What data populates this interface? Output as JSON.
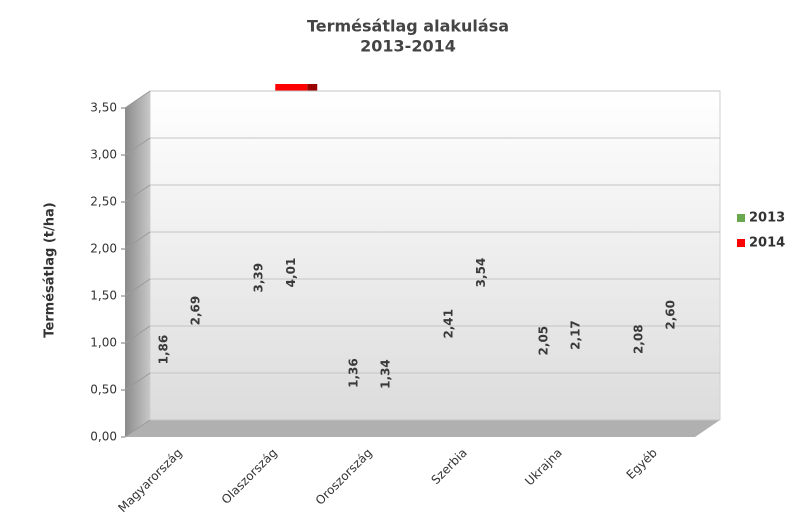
{
  "chart_data": {
    "type": "bar3d",
    "title": "Termésátlag alakulása",
    "subtitle": "2013-2014",
    "y_label": "Termésátlag (t/ha)",
    "categories": [
      "Magyarország",
      "Olaszország",
      "Oroszország",
      "Szerbia",
      "Ukrajna",
      "Egyéb"
    ],
    "series": [
      {
        "name": "2013",
        "color": "#6aa84f",
        "values": [
          1.86,
          3.39,
          1.36,
          2.41,
          2.05,
          2.08
        ],
        "value_labels": [
          "1,86",
          "3,39",
          "1,36",
          "2,41",
          "2,05",
          "2,08"
        ]
      },
      {
        "name": "2014",
        "color": "#ff0000",
        "values": [
          2.69,
          4.01,
          1.34,
          3.54,
          2.17,
          2.6
        ],
        "value_labels": [
          "2,69",
          "4,01",
          "1,34",
          "3,54",
          "2,17",
          "2,60"
        ]
      }
    ],
    "ylim": [
      0,
      3.5
    ],
    "yticks": [
      {
        "value": 0,
        "label": "0,00"
      },
      {
        "value": 0.5,
        "label": "0,50"
      },
      {
        "value": 1,
        "label": "1,00"
      },
      {
        "value": 1.5,
        "label": "1,50"
      },
      {
        "value": 2,
        "label": "2,00"
      },
      {
        "value": 2.5,
        "label": "2,50"
      },
      {
        "value": 3,
        "label": "3,00"
      },
      {
        "value": 3.5,
        "label": "3,50"
      }
    ],
    "grid": true,
    "legend": "right"
  }
}
